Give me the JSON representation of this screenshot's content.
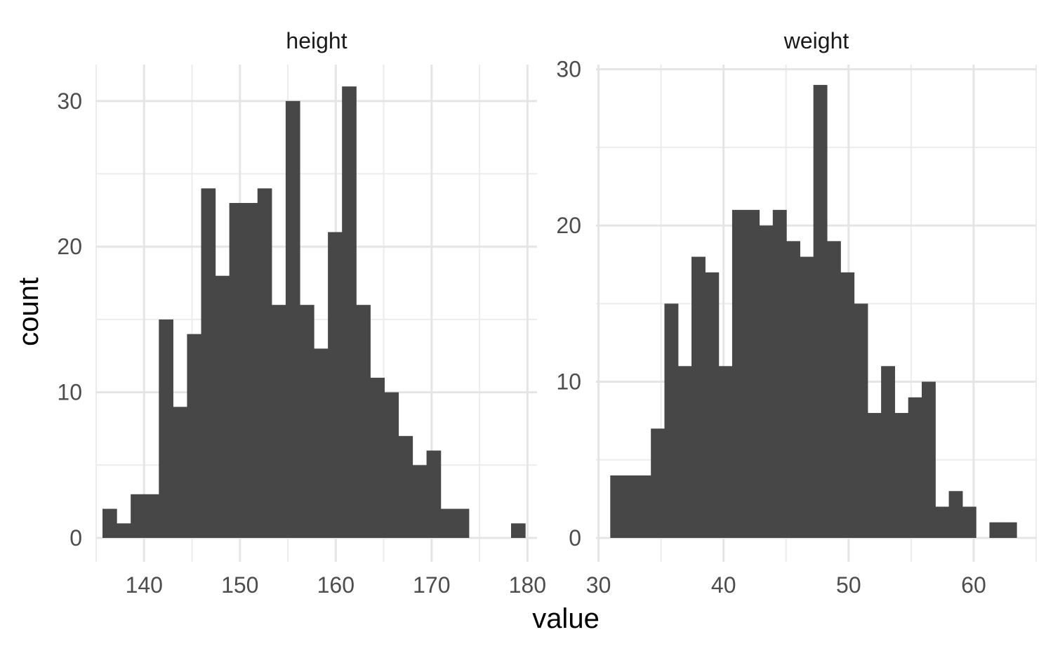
{
  "chart_data": {
    "type": "bar",
    "xlabel": "value",
    "ylabel": "count",
    "grid": true,
    "bar_color": "#474747",
    "facets": [
      {
        "name": "height",
        "xlim": [
          135,
          181
        ],
        "ylim": [
          0,
          32.5
        ],
        "x_ticks": [
          140,
          150,
          160,
          170,
          180
        ],
        "y_ticks": [
          0,
          10,
          20,
          30
        ],
        "bin_start": 135.66,
        "bin_width": 1.47,
        "counts": [
          2,
          1,
          3,
          3,
          15,
          9,
          14,
          24,
          18,
          23,
          23,
          24,
          16,
          30,
          16,
          13,
          21,
          31,
          16,
          11,
          10,
          7,
          5,
          6,
          2,
          2,
          0,
          0,
          0,
          1
        ]
      },
      {
        "name": "weight",
        "xlim": [
          29.8,
          65.0
        ],
        "ylim": [
          0,
          30.3
        ],
        "x_ticks": [
          30,
          40,
          50,
          60
        ],
        "y_ticks": [
          0,
          10,
          20,
          30
        ],
        "bin_start": 30.94,
        "bin_width": 1.083,
        "counts": [
          4,
          4,
          4,
          7,
          15,
          11,
          18,
          17,
          11,
          21,
          21,
          20,
          21,
          19,
          18,
          29,
          19,
          17,
          15,
          8,
          11,
          8,
          9,
          10,
          2,
          3,
          2,
          0,
          1,
          1
        ]
      }
    ]
  }
}
